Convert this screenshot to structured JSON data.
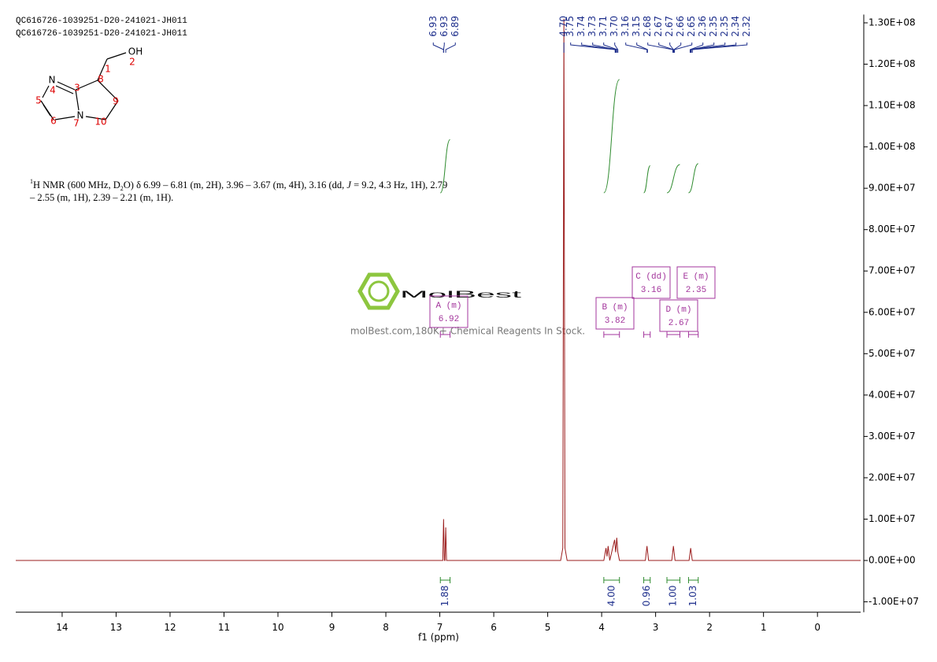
{
  "header": {
    "lines": [
      "QC616726-1039251-D20-241021-JH011",
      "QC616726-1039251-D20-241021-JH011"
    ]
  },
  "molecule": {
    "atoms": [
      "OH",
      "N",
      "N"
    ],
    "numbers": [
      1,
      2,
      3,
      4,
      5,
      6,
      7,
      8,
      9,
      10
    ]
  },
  "description": {
    "lines": [
      [
        "1",
        "H NMR (600 MHz, D",
        "2",
        "O) δ 6.99 – 6.81 (m, 2H), 3.96 – 3.67 (m, 4H), 3.16 (dd, ",
        "J",
        " = 9.2, 4.3 Hz, 1H), 2.79"
      ],
      [
        "– 2.55 (m, 1H), 2.39 – 2.21 (m, 1H)."
      ]
    ]
  },
  "watermark": {
    "brand": "MolBest",
    "tagline": "molBest.com,180K+ Chemical Reagents In Stock."
  },
  "chart_data": {
    "type": "line",
    "x_label": "f1 (ppm)",
    "color": "#9b1c1c",
    "xlim": [
      14.86,
      -0.8
    ],
    "ylim": [
      -12500000,
      132000000
    ],
    "xticks": [
      14,
      13,
      12,
      11,
      10,
      9,
      8,
      7,
      6,
      5,
      4,
      3,
      2,
      1,
      0
    ],
    "yticks": [
      {
        "value": -10000000,
        "label": "-1.00E+07"
      },
      {
        "value": 0,
        "label": "0.00E+00"
      },
      {
        "value": 10000000,
        "label": "1.00E+07"
      },
      {
        "value": 20000000,
        "label": "2.00E+07"
      },
      {
        "value": 30000000,
        "label": "3.00E+07"
      },
      {
        "value": 40000000,
        "label": "4.00E+07"
      },
      {
        "value": 50000000,
        "label": "5.00E+07"
      },
      {
        "value": 60000000,
        "label": "6.00E+07"
      },
      {
        "value": 70000000,
        "label": "7.00E+07"
      },
      {
        "value": 80000000,
        "label": "8.00E+07"
      },
      {
        "value": 90000000,
        "label": "9.00E+07"
      },
      {
        "value": 100000000,
        "label": "1.00E+08"
      },
      {
        "value": 110000000,
        "label": "1.10E+08"
      },
      {
        "value": 120000000,
        "label": "1.20E+08"
      },
      {
        "value": 130000000,
        "label": "1.30E+08"
      }
    ],
    "x": [
      14.86,
      7.0,
      6.945,
      6.93,
      6.915,
      6.905,
      6.89,
      6.875,
      4.76,
      4.72,
      4.7,
      4.68,
      4.64,
      3.96,
      3.92,
      3.9,
      3.88,
      3.85,
      3.76,
      3.74,
      3.72,
      3.7,
      3.67,
      3.19,
      3.16,
      3.13,
      2.7,
      2.67,
      2.64,
      2.38,
      2.35,
      2.32,
      -0.8
    ],
    "values": [
      0,
      0,
      0,
      10000000,
      0,
      0,
      8000000,
      0,
      0,
      3000000,
      131000000,
      3000000,
      0,
      0,
      3000000,
      1000000,
      3500000,
      0,
      5000000,
      2000000,
      5500000,
      2000000,
      0,
      0,
      3500000,
      0,
      0,
      3500000,
      0,
      0,
      3000000,
      0,
      0
    ],
    "peaks": [
      {
        "value": 6.93,
        "label": "6.93"
      },
      {
        "value": 6.93,
        "label": "6.93"
      },
      {
        "value": 6.89,
        "label": "6.89"
      },
      {
        "value": 4.7,
        "label": "4.70"
      },
      {
        "value": 3.75,
        "label": "3.75"
      },
      {
        "value": 3.74,
        "label": "3.74"
      },
      {
        "value": 3.73,
        "label": "3.73"
      },
      {
        "value": 3.71,
        "label": "3.71"
      },
      {
        "value": 3.7,
        "label": "3.70"
      },
      {
        "value": 3.16,
        "label": "3.16"
      },
      {
        "value": 3.15,
        "label": "3.15"
      },
      {
        "value": 2.68,
        "label": "2.68"
      },
      {
        "value": 2.67,
        "label": "2.67"
      },
      {
        "value": 2.67,
        "label": "2.67"
      },
      {
        "value": 2.66,
        "label": "2.66"
      },
      {
        "value": 2.65,
        "label": "2.65"
      },
      {
        "value": 2.36,
        "label": "2.36"
      },
      {
        "value": 2.35,
        "label": "2.35"
      },
      {
        "value": 2.35,
        "label": "2.35"
      },
      {
        "value": 2.34,
        "label": "2.34"
      },
      {
        "value": 2.32,
        "label": "2.32"
      }
    ],
    "integrals": [
      {
        "range": [
          6.99,
          6.81
        ],
        "value": 1.88,
        "label": "1.88"
      },
      {
        "range": [
          3.96,
          3.67
        ],
        "value": 4,
        "label": "4.00"
      },
      {
        "range": [
          3.22,
          3.1
        ],
        "value": 0.96,
        "label": "0.96"
      },
      {
        "range": [
          2.79,
          2.55
        ],
        "value": 1,
        "label": "1.00"
      },
      {
        "range": [
          2.39,
          2.21
        ],
        "value": 1.03,
        "label": "1.03"
      }
    ],
    "multiplets": [
      {
        "label": "A (m)",
        "shift": 6.92
      },
      {
        "label": "B (m)",
        "shift": 3.82
      },
      {
        "label": "C (dd)",
        "shift": 3.16
      },
      {
        "label": "D (m)",
        "shift": 2.67
      },
      {
        "label": "E (m)",
        "shift": 2.35
      }
    ],
    "integral_color": "#2e8b2e",
    "label_color": "#1e2f8c",
    "multiplet_color": "#a3359c"
  }
}
